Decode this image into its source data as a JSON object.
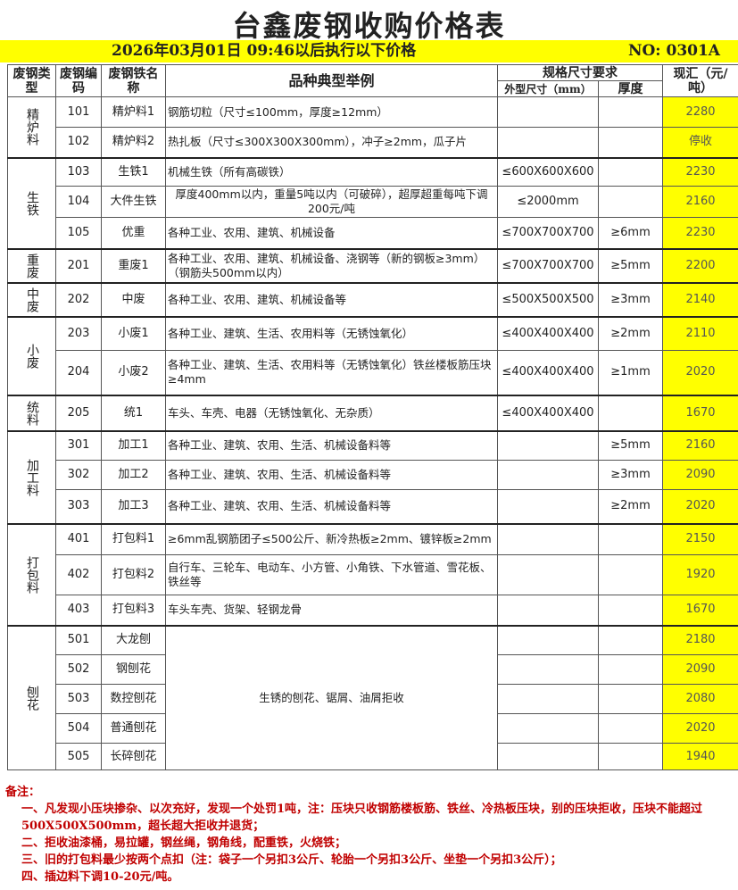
{
  "title": "台鑫废钢收购价格表",
  "subtitle": {
    "date": "2026年03月01日  09:46以后执行以下价格",
    "no": "NO: 0301A"
  },
  "headers": {
    "type": "废钢类型",
    "code": "废钢编码",
    "name": "废钢铁名称",
    "desc": "品种典型举例",
    "spec": "规格尺寸要求",
    "outer": "外型尺寸（mm）",
    "thick": "厚度",
    "price": "现汇（元/吨）"
  },
  "groups": [
    {
      "label": "精炉料",
      "rows": [
        {
          "code": "101",
          "name": "精炉料1",
          "desc": "钢筋切粒（尺寸≤100mm，厚度≥12mm）",
          "outer": "",
          "thick": "",
          "price": "2280"
        },
        {
          "code": "102",
          "name": "精炉料2",
          "desc": "热扎板（尺寸≤300X300X300mm），冲子≥2mm，瓜子片",
          "outer": "",
          "thick": "",
          "price": "停收"
        }
      ]
    },
    {
      "label": "生铁",
      "rows": [
        {
          "code": "103",
          "name": "生铁1",
          "desc": "机械生铁（所有高碳铁）",
          "outer": "≤600X600X600",
          "thick": "",
          "price": "2230"
        },
        {
          "code": "104",
          "name": "大件生铁",
          "desc": "厚度400mm以内，重量5吨以内（可破碎），超厚超重每吨下调200元/吨",
          "outer": "≤2000mm",
          "thick": "",
          "price": "2160",
          "center": true
        },
        {
          "code": "105",
          "name": "优重",
          "desc": "各种工业、农用、建筑、机械设备",
          "outer": "≤700X700X700",
          "thick": "≥6mm",
          "price": "2230"
        }
      ]
    },
    {
      "label": "重废",
      "rows": [
        {
          "code": "201",
          "name": "重废1",
          "desc": "各种工业、农用、建筑、机械设备、浇钢等（新的钢板≥3mm）（钢筋头500mm以内）",
          "outer": "≤700X700X700",
          "thick": "≥5mm",
          "price": "2200"
        }
      ]
    },
    {
      "label": "中废",
      "rows": [
        {
          "code": "202",
          "name": "中废",
          "desc": "各种工业、农用、建筑、机械设备等",
          "outer": "≤500X500X500",
          "thick": "≥3mm",
          "price": "2140"
        }
      ]
    },
    {
      "label": "小废",
      "rows": [
        {
          "code": "203",
          "name": "小废1",
          "desc": "各种工业、建筑、生活、农用料等（无锈蚀氧化）",
          "outer": "≤400X400X400",
          "thick": "≥2mm",
          "price": "2110"
        },
        {
          "code": "204",
          "name": "小废2",
          "desc": "各种工业、建筑、生活、农用料等（无锈蚀氧化）铁丝楼板筋压块≥4mm",
          "outer": "≤400X400X400",
          "thick": "≥1mm",
          "price": "2020"
        }
      ]
    },
    {
      "label": "统料",
      "rows": [
        {
          "code": "205",
          "name": "统1",
          "desc": "车头、车壳、电器（无锈蚀氧化、无杂质）",
          "outer": "≤400X400X400",
          "thick": "",
          "price": "1670"
        }
      ]
    },
    {
      "label": "加工料",
      "rows": [
        {
          "code": "301",
          "name": "加工1",
          "desc": "各种工业、建筑、农用、生活、机械设备料等",
          "outer": "",
          "thick": "≥5mm",
          "price": "2160"
        },
        {
          "code": "302",
          "name": "加工2",
          "desc": "各种工业、建筑、农用、生活、机械设备料等",
          "outer": "",
          "thick": "≥3mm",
          "price": "2090"
        },
        {
          "code": "303",
          "name": "加工3",
          "desc": "各种工业、建筑、农用、生活、机械设备料等",
          "outer": "",
          "thick": "≥2mm",
          "price": "2020"
        }
      ]
    },
    {
      "label": "打包料",
      "rows": [
        {
          "code": "401",
          "name": "打包料1",
          "desc": "≥6mm乱钢筋团子≤500公斤、新冷热板≥2mm、镀锌板≥2mm",
          "outer": "",
          "thick": "",
          "price": "2150"
        },
        {
          "code": "402",
          "name": "打包料2",
          "desc": "自行车、三轮车、电动车、小方管、小角铁、下水管道、雪花板、铁丝等",
          "outer": "",
          "thick": "",
          "price": "1920"
        },
        {
          "code": "403",
          "name": "打包料3",
          "desc": "车头车壳、货架、轻钢龙骨",
          "outer": "",
          "thick": "",
          "price": "1670"
        }
      ]
    },
    {
      "label": "刨花",
      "shared_desc": "生锈的刨花、锯屑、油屑拒收",
      "rows": [
        {
          "code": "501",
          "name": "大龙刨",
          "outer": "",
          "thick": "",
          "price": "2180"
        },
        {
          "code": "502",
          "name": "钢刨花",
          "outer": "",
          "thick": "",
          "price": "2090"
        },
        {
          "code": "503",
          "name": "数控刨花",
          "outer": "",
          "thick": "",
          "price": "2080"
        },
        {
          "code": "504",
          "name": "普通刨花",
          "outer": "",
          "thick": "",
          "price": "2020"
        },
        {
          "code": "505",
          "name": "长碎刨花",
          "outer": "",
          "thick": "",
          "price": "1940"
        }
      ]
    }
  ],
  "row_heights": [],
  "notes": {
    "title": "备注：",
    "items": [
      "一、凡发现小压块掺杂、以次充好，发现一个处罚1吨，注：压块只收钢筋楼板筋、铁丝、冷热板压块，别的压块拒收，压块不能超过500X500X500mm，超长超大拒收并退货；",
      "二、拒收油漆桶，易拉罐，钢丝绳，钢角线，配重铁，火烧铁；",
      "三、旧的打包料最少按两个点扣（注：袋子一个另扣3公斤、轮胎一个另扣3公斤、坐垫一个另扣3公斤）；",
      "四、插边料下调10-20元/吨。"
    ]
  },
  "colors": {
    "highlight": "#ffff00",
    "notes": "#c00000"
  }
}
